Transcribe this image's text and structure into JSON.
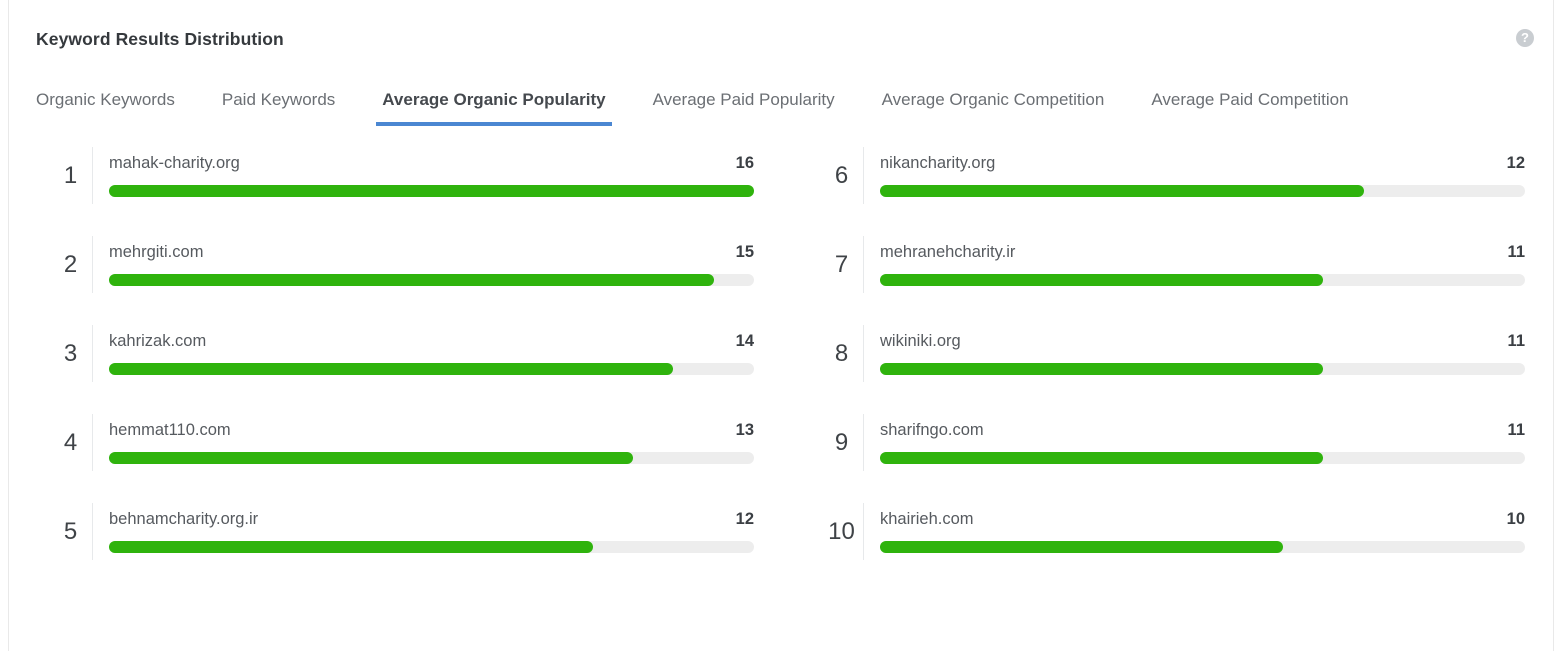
{
  "panel": {
    "title": "Keyword Results Distribution",
    "help_icon": "?"
  },
  "tabs": [
    {
      "label": "Organic Keywords",
      "active": false
    },
    {
      "label": "Paid Keywords",
      "active": false
    },
    {
      "label": "Average Organic Popularity",
      "active": true
    },
    {
      "label": "Average Paid Popularity",
      "active": false
    },
    {
      "label": "Average Organic Competition",
      "active": false
    },
    {
      "label": "Average Paid Competition",
      "active": false
    }
  ],
  "colors": {
    "accent_blue": "#4b87d2",
    "bar_green": "#2fb30d",
    "bar_track": "#ededed"
  },
  "chart_data": {
    "type": "bar",
    "title": "Average Organic Popularity",
    "orientation": "horizontal",
    "value_scale_max": 16,
    "legend": "none",
    "items": [
      {
        "rank": "1",
        "domain": "mahak-charity.org",
        "value": 16
      },
      {
        "rank": "2",
        "domain": "mehrgiti.com",
        "value": 15
      },
      {
        "rank": "3",
        "domain": "kahrizak.com",
        "value": 14
      },
      {
        "rank": "4",
        "domain": "hemmat110.com",
        "value": 13
      },
      {
        "rank": "5",
        "domain": "behnamcharity.org.ir",
        "value": 12
      },
      {
        "rank": "6",
        "domain": "nikancharity.org",
        "value": 12
      },
      {
        "rank": "7",
        "domain": "mehranehcharity.ir",
        "value": 11
      },
      {
        "rank": "8",
        "domain": "wikiniki.org",
        "value": 11
      },
      {
        "rank": "9",
        "domain": "sharifngo.com",
        "value": 11
      },
      {
        "rank": "10",
        "domain": "khairieh.com",
        "value": 10
      }
    ]
  }
}
